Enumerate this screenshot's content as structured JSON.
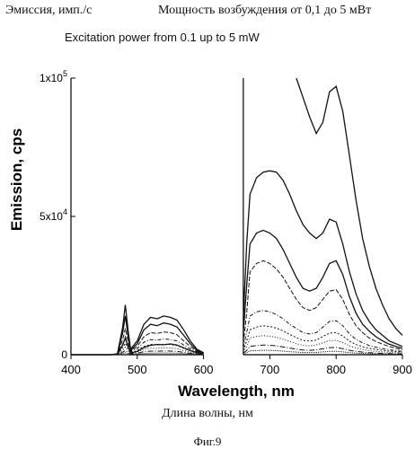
{
  "header": {
    "left_ru": "Эмиссия, имп./с",
    "right_ru": "Мощность возбуждения от 0,1 до 5 мВт"
  },
  "footer": {
    "xlabel_ru": "Длина волны, нм",
    "figure_label": "Фиг.9"
  },
  "chart_data": {
    "type": "line",
    "title": "Excitation power from 0.1 up to 5 mW",
    "xlabel": "Wavelength, nm",
    "ylabel": "Emission, cps",
    "xlim": [
      400,
      900
    ],
    "ylim": [
      0,
      100000
    ],
    "x_ticks": [
      400,
      500,
      600,
      700,
      800,
      900
    ],
    "x_tick_labels": [
      "400",
      "500",
      "600",
      "700",
      "800",
      "900"
    ],
    "y_ticks": [
      0,
      50000,
      100000
    ],
    "y_tick_labels": [
      {
        "base": "0",
        "exp": ""
      },
      {
        "base": "5x10",
        "exp": "4"
      },
      {
        "base": "1x10",
        "exp": "5"
      }
    ],
    "gap": [
      600,
      660
    ],
    "grid": false,
    "series": [
      {
        "x": [
          400,
          460,
          470,
          478,
          482,
          486,
          490,
          500,
          510,
          520,
          530,
          540,
          550,
          560,
          570,
          580,
          590,
          600,
          660,
          665,
          670,
          680,
          690,
          700,
          710,
          720,
          730,
          740,
          750,
          760,
          770,
          780,
          790,
          800,
          810,
          820,
          830,
          840,
          850,
          860,
          870,
          880,
          890,
          900
        ],
        "y": [
          0,
          0,
          200,
          3500,
          6000,
          3000,
          600,
          1200,
          2600,
          3400,
          3700,
          3600,
          3900,
          3500,
          2500,
          1500,
          700,
          300,
          null,
          null,
          null,
          null,
          null,
          null,
          null,
          null,
          null,
          100000,
          93000,
          86000,
          80000,
          84000,
          95000,
          97000,
          88000,
          72000,
          56000,
          42000,
          32000,
          24000,
          18000,
          13000,
          9500,
          7000
        ]
      },
      {
        "x": [
          400,
          460,
          470,
          478,
          482,
          486,
          490,
          500,
          510,
          520,
          530,
          540,
          550,
          560,
          570,
          580,
          590,
          600,
          660,
          665,
          670,
          680,
          690,
          700,
          710,
          720,
          730,
          740,
          750,
          760,
          770,
          780,
          790,
          800,
          810,
          820,
          830,
          840,
          850,
          860,
          870,
          880,
          890,
          900
        ],
        "y": [
          0,
          0,
          300,
          10000,
          18000,
          9000,
          2000,
          5000,
          11000,
          13500,
          13000,
          14000,
          13500,
          12500,
          9000,
          5000,
          2000,
          700,
          13000,
          40000,
          58000,
          64000,
          66000,
          66500,
          66000,
          63000,
          58000,
          52000,
          47000,
          44000,
          42000,
          44000,
          49000,
          48000,
          40000,
          30000,
          22000,
          16000,
          12000,
          9000,
          7000,
          5000,
          4000,
          3000
        ]
      },
      {
        "x": [
          400,
          460,
          470,
          478,
          482,
          486,
          490,
          500,
          510,
          520,
          530,
          540,
          550,
          560,
          570,
          580,
          590,
          600,
          660,
          665,
          670,
          680,
          690,
          700,
          710,
          720,
          730,
          740,
          750,
          760,
          770,
          780,
          790,
          800,
          810,
          820,
          830,
          840,
          850,
          860,
          870,
          880,
          890,
          900
        ],
        "y": [
          0,
          0,
          300,
          8000,
          14000,
          7000,
          1500,
          4000,
          9000,
          11000,
          10500,
          11500,
          11000,
          10000,
          7000,
          4000,
          1500,
          500,
          8000,
          25000,
          40000,
          44000,
          45000,
          44000,
          42000,
          38000,
          33000,
          28000,
          24000,
          23000,
          24000,
          28000,
          33000,
          34000,
          29000,
          21000,
          15000,
          11000,
          8500,
          6500,
          5000,
          3800,
          3000,
          2300
        ]
      },
      {
        "x": [
          400,
          460,
          470,
          478,
          482,
          486,
          490,
          500,
          510,
          520,
          530,
          540,
          550,
          560,
          570,
          580,
          590,
          600,
          660,
          665,
          670,
          680,
          690,
          700,
          710,
          720,
          730,
          740,
          750,
          760,
          770,
          780,
          790,
          800,
          810,
          820,
          830,
          840,
          850,
          860,
          870,
          880,
          890,
          900
        ],
        "y": [
          0,
          0,
          200,
          5500,
          9500,
          5000,
          1200,
          3000,
          6500,
          8000,
          7700,
          8200,
          8000,
          7200,
          5000,
          3000,
          1200,
          400,
          4000,
          15000,
          30000,
          33000,
          34000,
          33000,
          31000,
          28000,
          24000,
          20000,
          17000,
          16000,
          17000,
          20000,
          23000,
          23500,
          20000,
          14500,
          10500,
          8000,
          6000,
          4800,
          3800,
          3000,
          2300,
          1800
        ]
      },
      {
        "x": [
          400,
          460,
          470,
          478,
          482,
          486,
          490,
          500,
          510,
          520,
          530,
          540,
          550,
          560,
          570,
          580,
          590,
          600,
          660,
          665,
          670,
          680,
          690,
          700,
          710,
          720,
          730,
          740,
          750,
          760,
          770,
          780,
          790,
          800,
          810,
          820,
          830,
          840,
          850,
          860,
          870,
          880,
          890,
          900
        ],
        "y": [
          0,
          0,
          150,
          3800,
          6500,
          3500,
          900,
          2200,
          4500,
          5500,
          5300,
          5700,
          5500,
          5000,
          3500,
          2100,
          900,
          300,
          2500,
          8000,
          14000,
          15500,
          16000,
          15500,
          14500,
          13000,
          11000,
          9500,
          8000,
          7500,
          8000,
          10000,
          12000,
          12300,
          10500,
          7500,
          5600,
          4300,
          3300,
          2700,
          2200,
          1800,
          1500,
          1200
        ]
      },
      {
        "x": [
          400,
          460,
          470,
          478,
          482,
          486,
          490,
          500,
          510,
          520,
          530,
          540,
          550,
          560,
          570,
          580,
          590,
          600,
          660,
          665,
          670,
          680,
          690,
          700,
          710,
          720,
          730,
          740,
          750,
          760,
          770,
          780,
          790,
          800,
          810,
          820,
          830,
          840,
          850,
          860,
          870,
          880,
          890,
          900
        ],
        "y": [
          0,
          0,
          100,
          2500,
          4200,
          2300,
          600,
          1500,
          3000,
          3700,
          3600,
          3800,
          3700,
          3300,
          2300,
          1400,
          600,
          200,
          1500,
          5000,
          9000,
          10000,
          10500,
          10200,
          9600,
          8600,
          7300,
          6200,
          5200,
          4900,
          5300,
          6600,
          7800,
          8000,
          6800,
          4900,
          3700,
          2900,
          2300,
          1900,
          1600,
          1300,
          1100,
          900
        ]
      },
      {
        "x": [
          400,
          460,
          470,
          478,
          482,
          486,
          490,
          500,
          510,
          520,
          530,
          540,
          550,
          560,
          570,
          580,
          590,
          600,
          660,
          665,
          670,
          680,
          690,
          700,
          710,
          720,
          730,
          740,
          750,
          760,
          770,
          780,
          790,
          800,
          810,
          820,
          830,
          840,
          850,
          860,
          870,
          880,
          890,
          900
        ],
        "y": [
          0,
          0,
          80,
          1600,
          2700,
          1500,
          400,
          1000,
          2000,
          2400,
          2300,
          2500,
          2400,
          2200,
          1500,
          900,
          400,
          150,
          1000,
          3000,
          6000,
          6600,
          6900,
          6700,
          6300,
          5600,
          4800,
          4000,
          3400,
          3200,
          3500,
          4300,
          5100,
          5200,
          4400,
          3200,
          2400,
          1900,
          1500,
          1200,
          1000,
          850,
          700,
          600
        ]
      },
      {
        "x": [
          400,
          460,
          470,
          478,
          482,
          486,
          490,
          500,
          510,
          520,
          530,
          540,
          550,
          560,
          570,
          580,
          590,
          600,
          660,
          665,
          670,
          680,
          690,
          700,
          710,
          720,
          730,
          740,
          750,
          760,
          770,
          780,
          790,
          800,
          810,
          820,
          830,
          840,
          850,
          860,
          870,
          880,
          890,
          900
        ],
        "y": [
          0,
          0,
          50,
          900,
          1500,
          850,
          250,
          550,
          1100,
          1300,
          1250,
          1350,
          1300,
          1200,
          850,
          500,
          250,
          100,
          600,
          1500,
          3000,
          3300,
          3500,
          3400,
          3200,
          2800,
          2400,
          2000,
          1700,
          1600,
          1750,
          2150,
          2550,
          2600,
          2200,
          1600,
          1200,
          950,
          750,
          600,
          500,
          420,
          350,
          300
        ]
      },
      {
        "x": [
          400,
          460,
          470,
          478,
          482,
          486,
          490,
          500,
          510,
          520,
          530,
          540,
          550,
          560,
          570,
          580,
          590,
          600,
          660,
          665,
          670,
          680,
          690,
          700,
          710,
          720,
          730,
          740,
          750,
          760,
          770,
          780,
          790,
          800,
          810,
          820,
          830,
          840,
          850,
          860,
          870,
          880,
          890,
          900
        ],
        "y": [
          0,
          0,
          30,
          400,
          700,
          400,
          120,
          250,
          500,
          600,
          580,
          620,
          600,
          550,
          400,
          250,
          120,
          50,
          300,
          700,
          1400,
          1500,
          1600,
          1550,
          1450,
          1300,
          1100,
          950,
          800,
          750,
          820,
          1000,
          1200,
          1230,
          1050,
          760,
          570,
          450,
          360,
          290,
          240,
          200,
          170,
          140
        ]
      }
    ]
  }
}
